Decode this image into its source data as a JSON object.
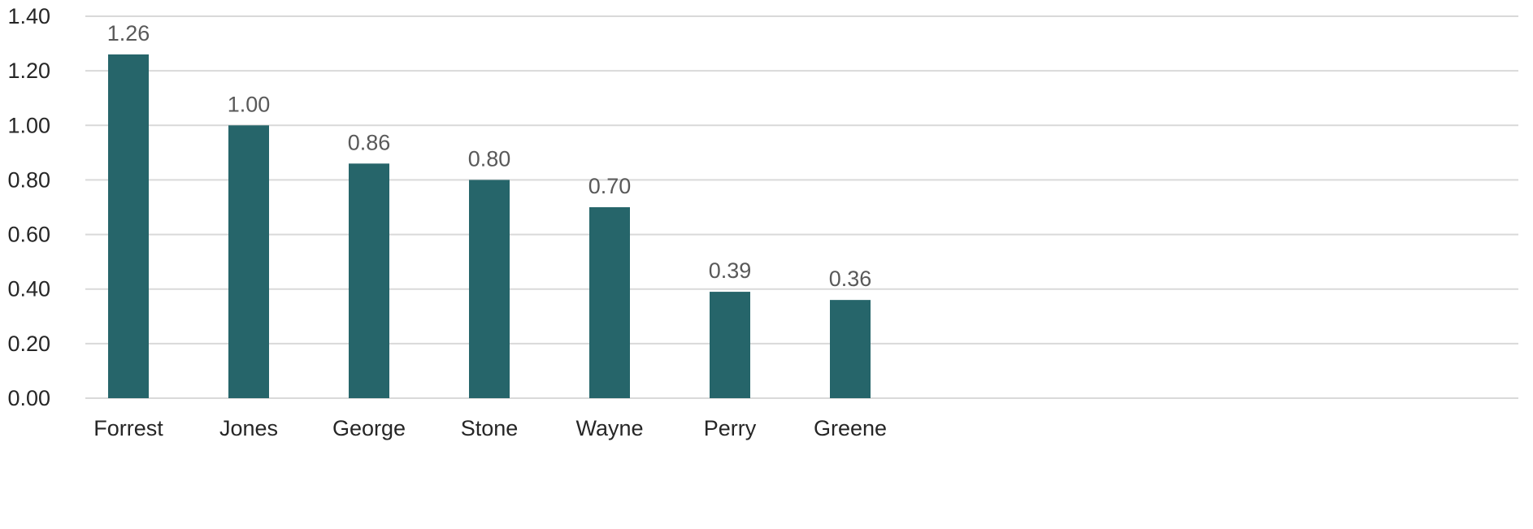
{
  "chart_data": {
    "type": "bar",
    "title": "",
    "xlabel": "",
    "ylabel": "",
    "categories": [
      "Forrest",
      "Jones",
      "George",
      "Stone",
      "Wayne",
      "Perry",
      "Greene"
    ],
    "values": [
      1.26,
      1.0,
      0.86,
      0.8,
      0.7,
      0.39,
      0.36
    ],
    "data_labels": [
      "1.26",
      "1.00",
      "0.86",
      "0.80",
      "0.70",
      "0.39",
      "0.36"
    ],
    "ylim": [
      0,
      1.4
    ],
    "yticks": [
      0,
      0.2,
      0.4,
      0.6,
      0.8,
      1.0,
      1.2,
      1.4
    ],
    "ytick_labels": [
      "0.00",
      "0.20",
      "0.40",
      "0.60",
      "0.80",
      "1.00",
      "1.20",
      "1.40"
    ],
    "grid": true,
    "legend": "none",
    "colors": {
      "bar": "#26656a",
      "grid": "#d9d9d9"
    }
  }
}
